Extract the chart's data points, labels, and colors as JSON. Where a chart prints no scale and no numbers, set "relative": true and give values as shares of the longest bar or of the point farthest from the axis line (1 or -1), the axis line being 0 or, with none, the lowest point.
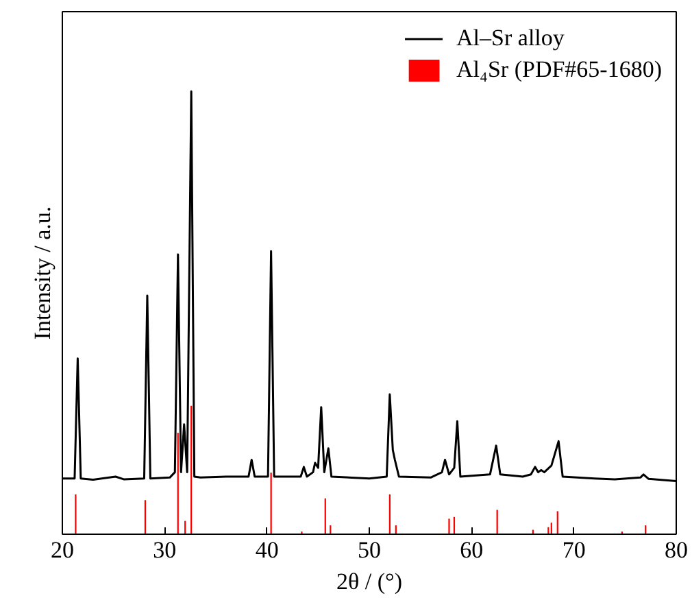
{
  "chart_data": {
    "type": "line",
    "xlabel": "2θ / (°)",
    "ylabel": "Intensity / a.u.",
    "relative": true,
    "xlim": [
      20,
      80
    ],
    "xticks": [
      20,
      30,
      40,
      50,
      60,
      70,
      80
    ],
    "grid": false,
    "legend": "top right",
    "series": [
      {
        "name": "Al–Sr alloy",
        "color": "#000000",
        "x": [
          20.0,
          21.2,
          21.5,
          21.8,
          23,
          25.2,
          26,
          28.0,
          28.3,
          28.6,
          30.5,
          31.0,
          31.3,
          31.6,
          31.9,
          32.2,
          32.6,
          32.9,
          33.5,
          36,
          38.2,
          38.5,
          38.8,
          40.1,
          40.4,
          40.7,
          43.3,
          43.6,
          43.9,
          44.5,
          44.7,
          45.0,
          45.3,
          45.6,
          46.0,
          46.3,
          50,
          51.7,
          52.0,
          52.3,
          52.5,
          52.9,
          56,
          57.1,
          57.4,
          57.8,
          58.3,
          58.6,
          58.9,
          61.8,
          62.4,
          62.8,
          65,
          65.8,
          66.2,
          66.5,
          66.8,
          67.1,
          67.8,
          68.5,
          68.9,
          72,
          74,
          76.5,
          76.8,
          77.3,
          80
        ],
        "values": [
          0.126,
          0.126,
          0.397,
          0.126,
          0.123,
          0.13,
          0.124,
          0.126,
          0.539,
          0.126,
          0.128,
          0.14,
          0.632,
          0.14,
          0.248,
          0.14,
          1.0,
          0.13,
          0.128,
          0.13,
          0.13,
          0.168,
          0.13,
          0.13,
          0.639,
          0.13,
          0.13,
          0.152,
          0.13,
          0.14,
          0.161,
          0.15,
          0.287,
          0.14,
          0.194,
          0.13,
          0.126,
          0.13,
          0.316,
          0.19,
          0.168,
          0.13,
          0.128,
          0.14,
          0.168,
          0.135,
          0.15,
          0.255,
          0.13,
          0.135,
          0.2,
          0.135,
          0.13,
          0.135,
          0.152,
          0.14,
          0.145,
          0.14,
          0.155,
          0.21,
          0.13,
          0.126,
          0.124,
          0.128,
          0.135,
          0.125,
          0.12
        ]
      },
      {
        "name": "Al₄Sr (PDF#65-1680)",
        "type": "bar",
        "color": "#ff0000",
        "x": [
          21.3,
          28.1,
          31.3,
          32.0,
          32.6,
          40.4,
          43.4,
          45.7,
          46.2,
          52.0,
          52.6,
          57.8,
          58.3,
          62.5,
          66.0,
          67.5,
          67.8,
          68.4,
          74.7,
          77.0
        ],
        "values": [
          0.09,
          0.077,
          0.229,
          0.03,
          0.29,
          0.139,
          0.006,
          0.081,
          0.02,
          0.09,
          0.02,
          0.035,
          0.039,
          0.055,
          0.01,
          0.016,
          0.026,
          0.052,
          0.006,
          0.02
        ]
      }
    ]
  }
}
